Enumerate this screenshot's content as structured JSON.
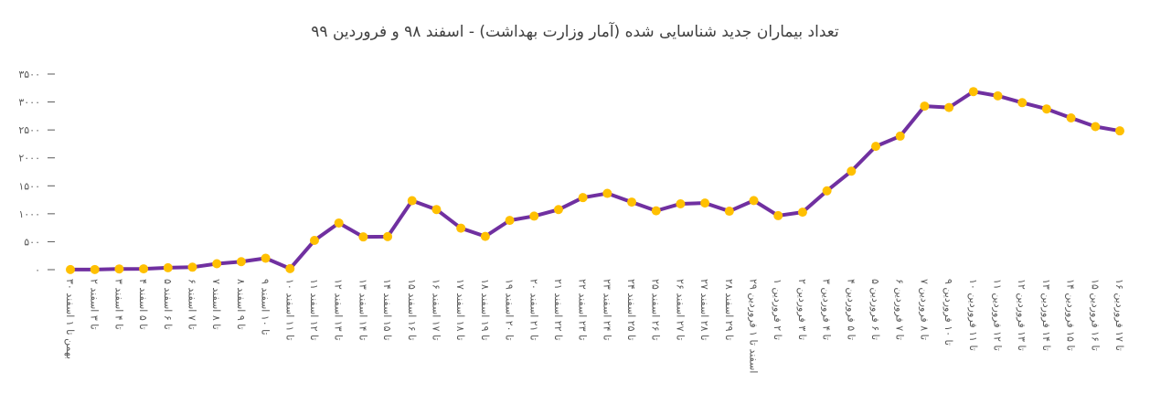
{
  "chart_data": {
    "type": "line",
    "title": "تعداد بیماران جدید شناسایی شده (آمار وزارت بهداشت) - اسفند ۹۸ و فروردین ۹۹",
    "categories": [
      "۳۰ بهمن تا ۱ اسفند",
      "۲ تا ۳ اسفند",
      "۳ تا ۴ اسفند",
      "۴ تا ۵ اسفند",
      "۵ تا ۶ اسفند",
      "۶ تا ۷ اسفند",
      "۷ تا ۸ اسفند",
      "۸ تا ۹ اسفند",
      "۹ تا ۱۰ اسفند",
      "۱۰ تا ۱۱ اسفند",
      "۱۱ تا ۱۲ اسفند",
      "۱۲ تا ۱۳ اسفند",
      "۱۳ تا ۱۴ اسفند",
      "۱۴ تا ۱۵ اسفند",
      "۱۵ تا ۱۶ اسفند",
      "۱۶ تا ۱۷ اسفند",
      "۱۷ تا ۱۸ اسفند",
      "۱۸ تا ۱۹ اسفند",
      "۱۹ تا ۲۰ اسفند",
      "۲۰ تا ۲۱ اسفند",
      "۲۱ تا ۲۲ اسفند",
      "۲۲ تا ۲۳ اسفند",
      "۲۳ تا ۲۴ اسفند",
      "۲۴ تا ۲۵ اسفند",
      "۲۵ تا ۲۶ اسفند",
      "۲۶ تا ۲۷ اسفند",
      "۲۷ تا ۲۸ اسفند",
      "۲۸ تا ۲۹ اسفند",
      "۲۹ اسفند تا ۱ فروردین",
      "۱ تا ۲ فروردین",
      "۲ تا ۳ فروردین",
      "۳ تا ۴ فروردین",
      "۴ تا ۵ فروردین",
      "۵ تا ۶ فروردین",
      "۶ تا ۷ فروردین",
      "۷ تا ۸ فروردین",
      "۹ تا ۱۰ فروردین",
      "۱۰ تا ۱۱ فروردین",
      "۱۱ تا ۱۲ فروردین",
      "۱۲ تا ۱۳ فروردین",
      "۱۳ تا ۱۴ فروردین",
      "۱۴ تا ۱۵ فروردین",
      "۱۵ تا ۱۶ فروردین",
      "۱۶ تا ۱۷ فروردین"
    ],
    "values": [
      2,
      3,
      13,
      15,
      34,
      44,
      106,
      143,
      205,
      18,
      523,
      835,
      586,
      591,
      1234,
      1076,
      743,
      595,
      881,
      958,
      1075,
      1289,
      1365,
      1209,
      1053,
      1178,
      1192,
      1046,
      1237,
      966,
      1028,
      1411,
      1762,
      2206,
      2389,
      2926,
      2901,
      3186,
      3110,
      2988,
      2875,
      2715,
      2560,
      2483
    ],
    "color": "#7030a0",
    "marker_color": "#ffc000",
    "ylim": [
      0,
      3500
    ],
    "yticks": [
      {
        "value": 0,
        "label": "٠"
      },
      {
        "value": 500,
        "label": "۵۰۰"
      },
      {
        "value": 1000,
        "label": "۱۰۰۰"
      },
      {
        "value": 1500,
        "label": "۱۵۰۰"
      },
      {
        "value": 2000,
        "label": "۲۰۰۰"
      },
      {
        "value": 2500,
        "label": "۲۵۰۰"
      },
      {
        "value": 3000,
        "label": "۳۰۰۰"
      },
      {
        "value": 3500,
        "label": "۳۵۰۰"
      }
    ]
  }
}
